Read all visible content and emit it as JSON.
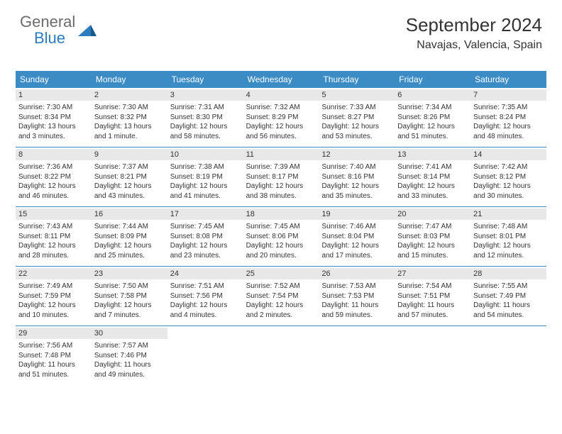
{
  "logo": {
    "text1": "General",
    "text2": "Blue"
  },
  "title": "September 2024",
  "location": "Navajas, Valencia, Spain",
  "colors": {
    "header_bg": "#3b8bc4",
    "header_text": "#ffffff",
    "daynum_bg": "#e8e8e8",
    "text": "#333333",
    "logo_gray": "#6b6b6b",
    "logo_blue": "#2d7cc0",
    "border": "#3b8bc4"
  },
  "weekdays": [
    "Sunday",
    "Monday",
    "Tuesday",
    "Wednesday",
    "Thursday",
    "Friday",
    "Saturday"
  ],
  "weeks": [
    [
      {
        "n": "1",
        "sr": "Sunrise: 7:30 AM",
        "ss": "Sunset: 8:34 PM",
        "dl": "Daylight: 13 hours and 3 minutes."
      },
      {
        "n": "2",
        "sr": "Sunrise: 7:30 AM",
        "ss": "Sunset: 8:32 PM",
        "dl": "Daylight: 13 hours and 1 minute."
      },
      {
        "n": "3",
        "sr": "Sunrise: 7:31 AM",
        "ss": "Sunset: 8:30 PM",
        "dl": "Daylight: 12 hours and 58 minutes."
      },
      {
        "n": "4",
        "sr": "Sunrise: 7:32 AM",
        "ss": "Sunset: 8:29 PM",
        "dl": "Daylight: 12 hours and 56 minutes."
      },
      {
        "n": "5",
        "sr": "Sunrise: 7:33 AM",
        "ss": "Sunset: 8:27 PM",
        "dl": "Daylight: 12 hours and 53 minutes."
      },
      {
        "n": "6",
        "sr": "Sunrise: 7:34 AM",
        "ss": "Sunset: 8:26 PM",
        "dl": "Daylight: 12 hours and 51 minutes."
      },
      {
        "n": "7",
        "sr": "Sunrise: 7:35 AM",
        "ss": "Sunset: 8:24 PM",
        "dl": "Daylight: 12 hours and 48 minutes."
      }
    ],
    [
      {
        "n": "8",
        "sr": "Sunrise: 7:36 AM",
        "ss": "Sunset: 8:22 PM",
        "dl": "Daylight: 12 hours and 46 minutes."
      },
      {
        "n": "9",
        "sr": "Sunrise: 7:37 AM",
        "ss": "Sunset: 8:21 PM",
        "dl": "Daylight: 12 hours and 43 minutes."
      },
      {
        "n": "10",
        "sr": "Sunrise: 7:38 AM",
        "ss": "Sunset: 8:19 PM",
        "dl": "Daylight: 12 hours and 41 minutes."
      },
      {
        "n": "11",
        "sr": "Sunrise: 7:39 AM",
        "ss": "Sunset: 8:17 PM",
        "dl": "Daylight: 12 hours and 38 minutes."
      },
      {
        "n": "12",
        "sr": "Sunrise: 7:40 AM",
        "ss": "Sunset: 8:16 PM",
        "dl": "Daylight: 12 hours and 35 minutes."
      },
      {
        "n": "13",
        "sr": "Sunrise: 7:41 AM",
        "ss": "Sunset: 8:14 PM",
        "dl": "Daylight: 12 hours and 33 minutes."
      },
      {
        "n": "14",
        "sr": "Sunrise: 7:42 AM",
        "ss": "Sunset: 8:12 PM",
        "dl": "Daylight: 12 hours and 30 minutes."
      }
    ],
    [
      {
        "n": "15",
        "sr": "Sunrise: 7:43 AM",
        "ss": "Sunset: 8:11 PM",
        "dl": "Daylight: 12 hours and 28 minutes."
      },
      {
        "n": "16",
        "sr": "Sunrise: 7:44 AM",
        "ss": "Sunset: 8:09 PM",
        "dl": "Daylight: 12 hours and 25 minutes."
      },
      {
        "n": "17",
        "sr": "Sunrise: 7:45 AM",
        "ss": "Sunset: 8:08 PM",
        "dl": "Daylight: 12 hours and 23 minutes."
      },
      {
        "n": "18",
        "sr": "Sunrise: 7:45 AM",
        "ss": "Sunset: 8:06 PM",
        "dl": "Daylight: 12 hours and 20 minutes."
      },
      {
        "n": "19",
        "sr": "Sunrise: 7:46 AM",
        "ss": "Sunset: 8:04 PM",
        "dl": "Daylight: 12 hours and 17 minutes."
      },
      {
        "n": "20",
        "sr": "Sunrise: 7:47 AM",
        "ss": "Sunset: 8:03 PM",
        "dl": "Daylight: 12 hours and 15 minutes."
      },
      {
        "n": "21",
        "sr": "Sunrise: 7:48 AM",
        "ss": "Sunset: 8:01 PM",
        "dl": "Daylight: 12 hours and 12 minutes."
      }
    ],
    [
      {
        "n": "22",
        "sr": "Sunrise: 7:49 AM",
        "ss": "Sunset: 7:59 PM",
        "dl": "Daylight: 12 hours and 10 minutes."
      },
      {
        "n": "23",
        "sr": "Sunrise: 7:50 AM",
        "ss": "Sunset: 7:58 PM",
        "dl": "Daylight: 12 hours and 7 minutes."
      },
      {
        "n": "24",
        "sr": "Sunrise: 7:51 AM",
        "ss": "Sunset: 7:56 PM",
        "dl": "Daylight: 12 hours and 4 minutes."
      },
      {
        "n": "25",
        "sr": "Sunrise: 7:52 AM",
        "ss": "Sunset: 7:54 PM",
        "dl": "Daylight: 12 hours and 2 minutes."
      },
      {
        "n": "26",
        "sr": "Sunrise: 7:53 AM",
        "ss": "Sunset: 7:53 PM",
        "dl": "Daylight: 11 hours and 59 minutes."
      },
      {
        "n": "27",
        "sr": "Sunrise: 7:54 AM",
        "ss": "Sunset: 7:51 PM",
        "dl": "Daylight: 11 hours and 57 minutes."
      },
      {
        "n": "28",
        "sr": "Sunrise: 7:55 AM",
        "ss": "Sunset: 7:49 PM",
        "dl": "Daylight: 11 hours and 54 minutes."
      }
    ],
    [
      {
        "n": "29",
        "sr": "Sunrise: 7:56 AM",
        "ss": "Sunset: 7:48 PM",
        "dl": "Daylight: 11 hours and 51 minutes."
      },
      {
        "n": "30",
        "sr": "Sunrise: 7:57 AM",
        "ss": "Sunset: 7:46 PM",
        "dl": "Daylight: 11 hours and 49 minutes."
      },
      null,
      null,
      null,
      null,
      null
    ]
  ]
}
